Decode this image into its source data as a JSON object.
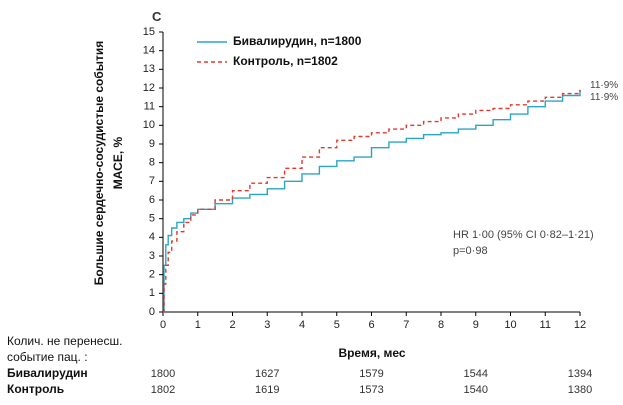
{
  "panel_letter": "C",
  "chart_data": {
    "type": "line",
    "ylabel_line1": "Большие сердечно-сосудистые события",
    "ylabel_line2": "МАСЕ, %",
    "xlabel": "Время, мес",
    "xlim": [
      0,
      12
    ],
    "ylim": [
      0,
      15
    ],
    "x_ticks": [
      0,
      1,
      2,
      3,
      4,
      5,
      6,
      7,
      8,
      9,
      10,
      11,
      12
    ],
    "y_ticks": [
      0,
      1,
      2,
      3,
      4,
      5,
      6,
      7,
      8,
      9,
      10,
      11,
      12,
      13,
      14,
      15
    ],
    "grid": false,
    "legend_position": "top-left",
    "series": [
      {
        "name": "Бивалирудин, n=1800",
        "color": "#2aa6c4",
        "style": "solid",
        "x": [
          0,
          0.03,
          0.08,
          0.15,
          0.25,
          0.4,
          0.6,
          0.8,
          1.0,
          1.5,
          2.0,
          2.5,
          3.0,
          3.5,
          4.0,
          4.5,
          5.0,
          5.5,
          6.0,
          6.5,
          7.0,
          7.5,
          8.0,
          8.5,
          9.0,
          9.5,
          10.0,
          10.5,
          11.0,
          11.5,
          12.0
        ],
        "values": [
          0,
          2.5,
          3.6,
          4.1,
          4.5,
          4.8,
          5.0,
          5.3,
          5.5,
          5.8,
          6.1,
          6.3,
          6.6,
          7.0,
          7.4,
          7.8,
          8.1,
          8.3,
          8.8,
          9.1,
          9.3,
          9.5,
          9.6,
          9.8,
          10.0,
          10.3,
          10.6,
          11.0,
          11.3,
          11.6,
          11.9
        ]
      },
      {
        "name": "Контроль, n=1802",
        "color": "#e0392f",
        "style": "dashed",
        "x": [
          0,
          0.03,
          0.08,
          0.15,
          0.25,
          0.4,
          0.6,
          0.8,
          1.0,
          1.5,
          2.0,
          2.5,
          3.0,
          3.5,
          4.0,
          4.5,
          5.0,
          5.5,
          6.0,
          6.5,
          7.0,
          7.5,
          8.0,
          8.5,
          9.0,
          9.5,
          10.0,
          10.5,
          11.0,
          11.5,
          12.0
        ],
        "values": [
          0,
          1.5,
          2.5,
          3.2,
          3.8,
          4.3,
          4.8,
          5.2,
          5.5,
          6.0,
          6.5,
          6.9,
          7.2,
          7.7,
          8.3,
          8.8,
          9.2,
          9.4,
          9.6,
          9.8,
          10.0,
          10.2,
          10.4,
          10.6,
          10.8,
          10.9,
          11.1,
          11.3,
          11.5,
          11.7,
          11.9
        ]
      }
    ],
    "end_labels": [
      "11·9%",
      "11·9%"
    ],
    "annotation_line1": "HR 1·00 (95% CI 0·82–1·21)",
    "annotation_line2": "p=0·98"
  },
  "risk_table": {
    "title_line1": "Колич. не перенесш.",
    "title_line2": "событие пац. :",
    "times": [
      0,
      3,
      6,
      9,
      12
    ],
    "rows": [
      {
        "group": "Бивалирудин",
        "values": [
          "1800",
          "1627",
          "1579",
          "1544",
          "1394"
        ]
      },
      {
        "group": "Контроль",
        "values": [
          "1802",
          "1619",
          "1573",
          "1540",
          "1380"
        ]
      }
    ]
  }
}
